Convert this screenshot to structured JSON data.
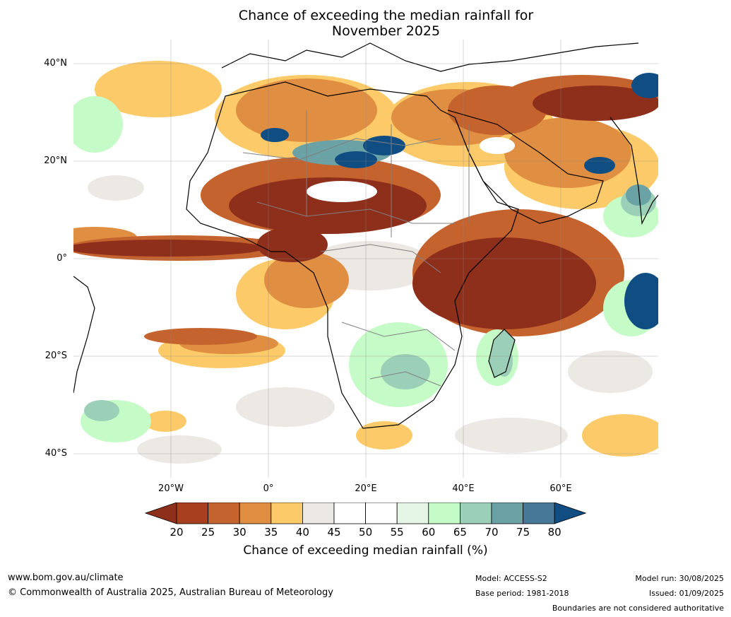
{
  "title": {
    "line1": "Chance of exceeding the median rainfall for",
    "line2": "November 2025"
  },
  "map": {
    "latitude_labels": [
      "40°N",
      "20°N",
      "0°",
      "20°S",
      "40°S"
    ],
    "longitude_labels": [
      "20°W",
      "0°",
      "20°E",
      "40°E",
      "60°E"
    ],
    "ocean_color": "#ffffff",
    "land_outline_color": "#000000",
    "border_color": "#808080"
  },
  "colorbar": {
    "ticks": [
      "20",
      "25",
      "30",
      "35",
      "40",
      "45",
      "50",
      "55",
      "60",
      "65",
      "70",
      "75",
      "80"
    ],
    "colors": [
      "#8e2f1c",
      "#a8401f",
      "#c5632f",
      "#e08e41",
      "#fcca68",
      "#ece9e4",
      "#ffffff",
      "#ffffff",
      "#e5f5e6",
      "#c5fbc6",
      "#9bcfb8",
      "#6aa2a6",
      "#477898",
      "#0f4d82"
    ],
    "label": "Chance of exceeding median rainfall (%)"
  },
  "footer": {
    "website": "www.bom.gov.au/climate",
    "copyright": "© Commonwealth of Australia 2025, Australian Bureau of Meteorology",
    "model": "Model: ACCESS-S2",
    "base_period": "Base period: 1981-2018",
    "model_run": "Model run: 30/08/2025",
    "issued": "Issued: 01/09/2025",
    "disclaimer": "Boundaries are not considered authoritative"
  }
}
